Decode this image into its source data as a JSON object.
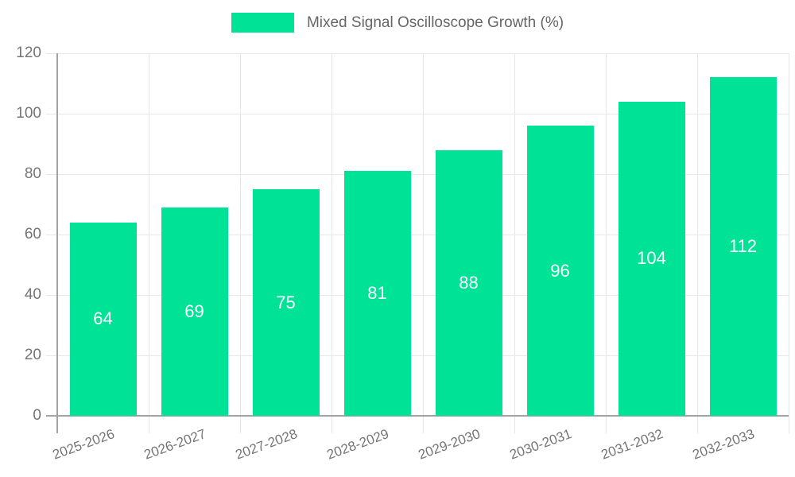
{
  "legend": {
    "label": "Mixed Signal Oscilloscope Growth (%)"
  },
  "chart_data": {
    "type": "bar",
    "title": "",
    "xlabel": "",
    "ylabel": "",
    "categories": [
      "2025-2026",
      "2026-2027",
      "2027-2028",
      "2028-2029",
      "2029-2030",
      "2030-2031",
      "2031-2032",
      "2032-2033"
    ],
    "series": [
      {
        "name": "Mixed Signal Oscilloscope Growth (%)",
        "values": [
          64,
          69,
          75,
          81,
          88,
          96,
          104,
          112
        ]
      }
    ],
    "ylim": [
      0,
      120
    ],
    "yticks": [
      0,
      20,
      40,
      60,
      80,
      100,
      120
    ],
    "grid": true,
    "legend_position": "top",
    "bar_value_labels": true,
    "colors": {
      "bar": "#00E396",
      "grid": "#e7e7e7",
      "axis": "#a2a2a2",
      "tick_text": "#757575",
      "legend_text": "#666666",
      "value_label": "#ffffff",
      "background": "#ffffff"
    }
  }
}
